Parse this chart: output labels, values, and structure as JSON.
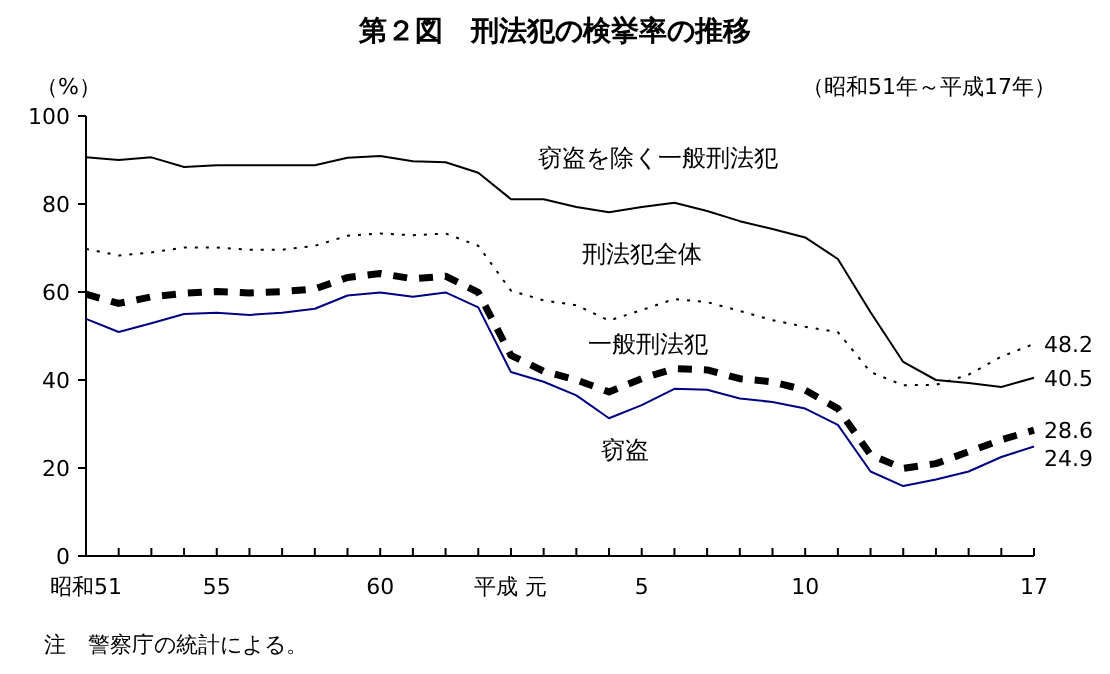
{
  "chart_data": {
    "type": "line",
    "title": "第２図　刑法犯の検挙率の推移",
    "subtitle": "（昭和51年～平成17年）",
    "ylabel": "（%）",
    "annotations": [
      "注　警察庁の統計による。"
    ],
    "categories": [
      "昭和51",
      null,
      null,
      null,
      "55",
      null,
      null,
      null,
      null,
      "60",
      null,
      null,
      null,
      "平成 元",
      null,
      null,
      null,
      "5",
      null,
      null,
      null,
      null,
      "10",
      null,
      null,
      null,
      null,
      null,
      null,
      "17"
    ],
    "ylim": [
      0,
      100
    ],
    "yticks": [
      0,
      20,
      40,
      60,
      80,
      100
    ],
    "marker": "none",
    "series": [
      {
        "name": "窃盗を除く一般刑法犯",
        "color": "#000000",
        "line_style": "solid",
        "values": [
          90.6,
          90.0,
          90.6,
          88.4,
          88.8,
          88.8,
          88.8,
          88.8,
          90.5,
          90.9,
          89.7,
          89.5,
          87.1,
          81.1,
          81.1,
          79.3,
          78.1,
          79.3,
          80.3,
          78.4,
          76.1,
          74.3,
          72.4,
          67.5,
          55.4,
          44.1,
          40.0,
          39.3,
          38.4,
          40.5
        ],
        "value_labels": [
          null,
          null,
          null,
          null,
          null,
          null,
          null,
          null,
          null,
          null,
          null,
          null,
          null,
          null,
          null,
          null,
          null,
          null,
          null,
          null,
          null,
          null,
          null,
          null,
          null,
          null,
          null,
          null,
          null,
          "40.5"
        ]
      },
      {
        "name": "刑法犯全体",
        "color": "#000000",
        "line_style": "dotted",
        "values": [
          69.8,
          68.3,
          69.0,
          70.1,
          70.1,
          69.6,
          69.6,
          70.5,
          72.8,
          73.3,
          72.9,
          73.3,
          70.5,
          60.3,
          58.1,
          57.0,
          53.5,
          55.9,
          58.4,
          57.7,
          55.7,
          53.6,
          52.1,
          50.9,
          41.8,
          38.8,
          38.9,
          41.2,
          45.3,
          48.2
        ],
        "value_labels": [
          null,
          null,
          null,
          null,
          null,
          null,
          null,
          null,
          null,
          null,
          null,
          null,
          null,
          null,
          null,
          null,
          null,
          null,
          null,
          null,
          null,
          null,
          null,
          null,
          null,
          null,
          null,
          null,
          null,
          "48.2"
        ]
      },
      {
        "name": "一般刑法犯",
        "color": "#000000",
        "line_style": "dashed",
        "values": [
          59.5,
          57.4,
          58.9,
          59.7,
          60.1,
          59.8,
          60.1,
          60.7,
          63.3,
          64.2,
          63.0,
          63.6,
          59.9,
          45.6,
          42.0,
          40.0,
          37.3,
          40.3,
          42.6,
          42.3,
          40.3,
          39.6,
          37.7,
          33.5,
          23.0,
          19.9,
          21.0,
          23.7,
          26.4,
          28.6
        ],
        "value_labels": [
          null,
          null,
          null,
          null,
          null,
          null,
          null,
          null,
          null,
          null,
          null,
          null,
          null,
          null,
          null,
          null,
          null,
          null,
          null,
          null,
          null,
          null,
          null,
          null,
          null,
          null,
          null,
          null,
          null,
          "28.6"
        ]
      },
      {
        "name": "窃盗",
        "color": "#000080",
        "line_style": "solid",
        "values": [
          53.9,
          50.9,
          52.9,
          55.0,
          55.3,
          54.8,
          55.3,
          56.2,
          59.2,
          59.9,
          58.9,
          59.9,
          56.5,
          41.8,
          39.6,
          36.5,
          31.3,
          34.3,
          38.0,
          37.8,
          35.8,
          35.0,
          33.5,
          29.8,
          19.2,
          15.9,
          17.4,
          19.2,
          22.5,
          24.9
        ],
        "value_labels": [
          null,
          null,
          null,
          null,
          null,
          null,
          null,
          null,
          null,
          null,
          null,
          null,
          null,
          null,
          null,
          null,
          null,
          null,
          null,
          null,
          null,
          null,
          null,
          null,
          null,
          null,
          null,
          null,
          null,
          "24.9"
        ]
      }
    ]
  }
}
